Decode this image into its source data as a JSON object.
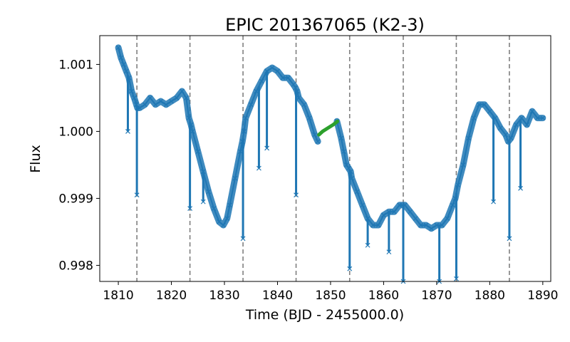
{
  "chart_data": {
    "type": "line",
    "title": "EPIC 201367065 (K2-3)",
    "xlabel": "Time (BJD - 2455000.0)",
    "ylabel": "Flux",
    "xlim": [
      1806.5,
      1891.5
    ],
    "ylim": [
      0.99776,
      1.00143
    ],
    "xticks": [
      1810,
      1820,
      1830,
      1840,
      1850,
      1860,
      1870,
      1880,
      1890
    ],
    "yticks": [
      {
        "value": 0.998,
        "label": "0.998"
      },
      {
        "value": 0.999,
        "label": "0.999"
      },
      {
        "value": 1.0,
        "label": "1.000"
      },
      {
        "value": 1.001,
        "label": "1.001"
      }
    ],
    "grid": false,
    "transit_times": [
      1813.5,
      1823.5,
      1833.5,
      1843.5,
      1853.6,
      1863.7,
      1873.7,
      1883.7
    ],
    "series": [
      {
        "color": "#1f77b4",
        "marker": "x",
        "segments": [
          {
            "x": [
              1810.0,
              1810.5,
              1811.0,
              1811.5,
              1812.0,
              1812.5,
              1813.0,
              1813.4,
              1813.6,
              1814.0,
              1815.0,
              1816.0,
              1817.0,
              1818.0,
              1819.0,
              1820.0,
              1821.0,
              1822.0,
              1822.8,
              1823.3,
              1823.7,
              1824.0,
              1825.0,
              1826.0,
              1827.0,
              1828.0,
              1829.0,
              1829.8,
              1830.5,
              1831.0,
              1832.0,
              1833.0,
              1833.4,
              1833.7,
              1834.0,
              1835.0,
              1836.0,
              1837.0,
              1838.0,
              1839.0,
              1840.0,
              1841.0,
              1842.0,
              1843.0,
              1843.4,
              1843.7,
              1844.0,
              1845.0,
              1846.0,
              1847.0,
              1847.6
            ],
            "y": [
              1.00125,
              1.0011,
              1.001,
              1.0009,
              1.0008,
              1.0006,
              1.0005,
              1.0004,
              1.00035,
              1.00035,
              1.0004,
              1.0005,
              1.0004,
              1.00045,
              1.0004,
              1.00045,
              1.0005,
              1.0006,
              1.0005,
              1.0002,
              1.0001,
              1.0,
              0.9997,
              0.9994,
              0.9991,
              0.99885,
              0.99865,
              0.9986,
              0.9987,
              0.9989,
              0.9993,
              0.9997,
              0.99985,
              1.0,
              1.0002,
              1.0004,
              1.0006,
              1.00075,
              1.0009,
              1.00095,
              1.0009,
              1.0008,
              1.0008,
              1.0007,
              1.00065,
              1.0006,
              1.0005,
              1.0004,
              1.0002,
              0.99995,
              0.99985
            ]
          },
          {
            "x": [
              1851.2,
              1852.0,
              1852.5,
              1853.0,
              1853.4,
              1853.8,
              1854.0,
              1855.0,
              1856.0,
              1857.0,
              1858.0,
              1859.0,
              1860.0,
              1861.0,
              1862.0,
              1863.0,
              1863.5,
              1864.0,
              1865.0,
              1866.0,
              1867.0,
              1868.0,
              1869.0,
              1870.0,
              1871.0,
              1872.0,
              1873.0,
              1873.5,
              1874.0,
              1875.0,
              1876.0,
              1877.0,
              1878.0,
              1879.0,
              1880.0,
              1881.0,
              1882.0,
              1883.0,
              1883.5,
              1884.0,
              1885.0,
              1886.0,
              1887.0,
              1888.0,
              1889.0,
              1890.0
            ],
            "y": [
              1.00015,
              0.9999,
              0.9997,
              0.9995,
              0.99945,
              0.9994,
              0.9993,
              0.9991,
              0.9989,
              0.9987,
              0.9986,
              0.9986,
              0.99875,
              0.9988,
              0.9988,
              0.9989,
              0.9989,
              0.9989,
              0.9988,
              0.9987,
              0.9986,
              0.9986,
              0.99855,
              0.9986,
              0.9986,
              0.9987,
              0.9989,
              0.999,
              0.9992,
              0.9995,
              0.9999,
              1.0002,
              1.0004,
              1.0004,
              1.0003,
              1.0002,
              1.00005,
              0.99995,
              0.99985,
              0.9999,
              1.0001,
              1.0002,
              1.0001,
              1.0003,
              1.0002,
              1.0002
            ]
          }
        ],
        "dips": [
          {
            "x": 1811.8,
            "y": 1.0
          },
          {
            "x": 1813.5,
            "y": 0.99905
          },
          {
            "x": 1823.5,
            "y": 0.99885
          },
          {
            "x": 1826.0,
            "y": 0.99895
          },
          {
            "x": 1833.5,
            "y": 0.9984
          },
          {
            "x": 1836.5,
            "y": 0.99945
          },
          {
            "x": 1838.0,
            "y": 0.99975
          },
          {
            "x": 1843.5,
            "y": 0.99905
          },
          {
            "x": 1853.6,
            "y": 0.99795
          },
          {
            "x": 1857.0,
            "y": 0.9983
          },
          {
            "x": 1861.0,
            "y": 0.9982
          },
          {
            "x": 1863.7,
            "y": 0.9976
          },
          {
            "x": 1870.5,
            "y": 0.9977
          },
          {
            "x": 1873.7,
            "y": 0.9978
          },
          {
            "x": 1880.7,
            "y": 0.99895
          },
          {
            "x": 1883.7,
            "y": 0.9984
          },
          {
            "x": 1885.8,
            "y": 0.99915
          }
        ]
      },
      {
        "color": "#2ca02c",
        "x": [
          1847.8,
          1848.5,
          1849.5,
          1850.5,
          1851.3
        ],
        "y": [
          0.99995,
          1.0,
          1.00005,
          1.0001,
          1.00015
        ]
      }
    ]
  }
}
